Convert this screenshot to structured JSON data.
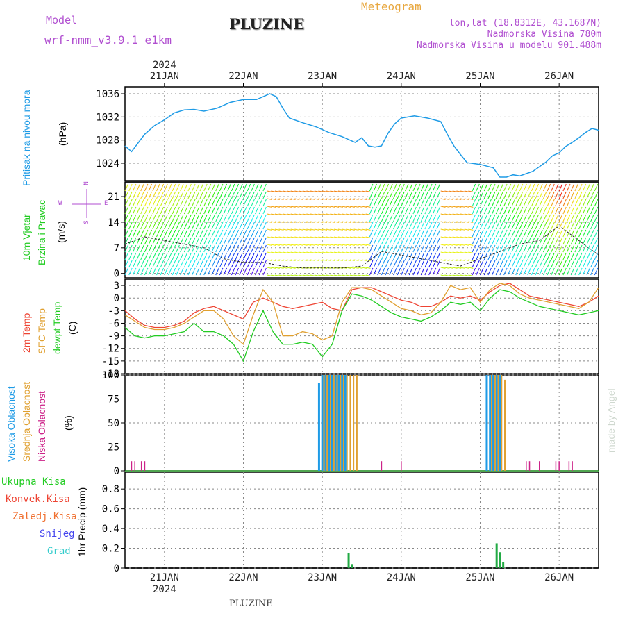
{
  "header": {
    "model_label": "Model",
    "model_name": "wrf-nmm_v3.9.1  e1km",
    "station": "PLUZINE",
    "meteogram_label": "Meteogram",
    "lonlat": "lon,lat (18.8312E, 43.1687N)",
    "altitude": "Nadmorska Visina 780m",
    "model_altitude": "Nadmorska Visina u modelu 901.488m",
    "footer_station": "PLUZINE",
    "watermark": "made by Angel"
  },
  "colors": {
    "pressure": "#1e9be6",
    "temp_2m": "#ee4433",
    "temp_sfc": "#e0a030",
    "dewpoint": "#22cc22",
    "cloud_high": "#1e9be6",
    "cloud_mid": "#e0a030",
    "cloud_low": "#cc2288",
    "precip_total": "#22aa44",
    "label_purple": "#b04ed0",
    "label_orange": "#e8a840"
  },
  "time_axis": {
    "year": "2024",
    "days": [
      "21JAN",
      "22JAN",
      "23JAN",
      "24JAN",
      "25JAN",
      "26JAN"
    ],
    "start_hour": -12,
    "end_hour": 132
  },
  "panels": {
    "pressure": {
      "ylabel_side": "Pritisak na nivou mora",
      "unit": "(hPa)",
      "ticks": [
        "1024",
        "1028",
        "1032",
        "1036"
      ]
    },
    "wind": {
      "ylabel_side_1": "10m Vjetar",
      "ylabel_side_2": "Brzina i Pravac",
      "unit": "(m/s)",
      "ticks": [
        "0",
        "7",
        "14",
        "21"
      ],
      "compass_n": "N",
      "compass_s": "S",
      "compass_w": "W",
      "compass_e": "E"
    },
    "temperature": {
      "label_2m": "2m Temp",
      "label_sfc": "SFC Temp",
      "label_dew": "dewpt Temp",
      "unit": "(C)",
      "ticks": [
        "3",
        "0",
        "-3",
        "-6",
        "-9",
        "-12",
        "-15",
        "-18"
      ]
    },
    "cloud": {
      "label_high": "Visoka Oblacnost",
      "label_mid": "Srednja Oblacnost",
      "label_low": "Niska Oblacnost",
      "unit": "(%)",
      "ticks": [
        "0",
        "25",
        "50",
        "75",
        "100"
      ]
    },
    "precip": {
      "legend": [
        "Ukupna Kisa",
        "Konvek.Kisa",
        "Zaledj.Kisa",
        "Snijeg",
        "Grad"
      ],
      "unit": "1hr Precip (mm)",
      "ticks": [
        "0",
        "0.2",
        "0.4",
        "0.6",
        "0.8"
      ]
    }
  },
  "chart_data": [
    {
      "type": "line",
      "name": "pressure",
      "ylabel": "Pritisak na nivou mora (hPa)",
      "ylim": [
        1021,
        1037.2
      ],
      "x": [
        -12,
        -10,
        -8,
        -6,
        -3,
        0,
        3,
        6,
        9,
        12,
        16,
        20,
        24,
        28,
        30,
        32,
        34,
        36,
        38,
        42,
        46,
        50,
        54,
        58,
        60,
        62,
        64,
        66,
        68,
        70,
        72,
        76,
        80,
        84,
        86,
        88,
        90,
        92,
        96,
        100,
        102,
        104,
        106,
        108,
        112,
        116,
        118,
        120,
        122,
        124,
        126,
        128,
        130,
        132
      ],
      "y": [
        1027,
        1026,
        1027.5,
        1029,
        1030.5,
        1031.5,
        1032.7,
        1033.2,
        1033.3,
        1033,
        1033.5,
        1034.5,
        1035,
        1035,
        1035.5,
        1036,
        1035.5,
        1033.5,
        1031.8,
        1031,
        1030.3,
        1029.3,
        1028.6,
        1027.6,
        1028.4,
        1027,
        1026.8,
        1027,
        1029.2,
        1030.8,
        1031.8,
        1032.2,
        1031.8,
        1031.2,
        1029,
        1027,
        1025.5,
        1024.1,
        1023.8,
        1023.2,
        1021.6,
        1021.6,
        1022,
        1021.8,
        1022.6,
        1024.2,
        1025.3,
        1025.8,
        1026.9,
        1027.6,
        1028.4,
        1029.3,
        1030,
        1029.7
      ]
    },
    {
      "type": "line",
      "name": "wind",
      "ylabel": "10m Vjetar Brzina i Pravac (m/s)",
      "ylim": [
        -1.2,
        25
      ],
      "x": [
        -12,
        -6,
        0,
        6,
        12,
        18,
        24,
        30,
        36,
        42,
        48,
        54,
        60,
        66,
        72,
        78,
        84,
        90,
        96,
        102,
        108,
        114,
        120,
        126,
        132
      ],
      "y": [
        8,
        10,
        9,
        8,
        7,
        4,
        3,
        3,
        2,
        1.5,
        1.5,
        1.5,
        2,
        6,
        5,
        4,
        3,
        2,
        4,
        6,
        8,
        9,
        13,
        9,
        5
      ]
    },
    {
      "type": "line",
      "ylabel": "(C)",
      "ylim": [
        -18,
        4.5
      ],
      "x": [
        -12,
        -9,
        -6,
        -3,
        0,
        3,
        6,
        9,
        12,
        15,
        18,
        21,
        24,
        27,
        30,
        33,
        36,
        39,
        42,
        45,
        48,
        51,
        54,
        57,
        60,
        63,
        66,
        69,
        72,
        75,
        78,
        81,
        84,
        87,
        90,
        93,
        96,
        99,
        102,
        105,
        108,
        111,
        114,
        117,
        120,
        123,
        126,
        129,
        132
      ],
      "series": [
        {
          "name": "2m Temp",
          "values": [
            -3,
            -5,
            -6.5,
            -7,
            -7,
            -6.5,
            -5.5,
            -3.5,
            -2.5,
            -2,
            -3,
            -4,
            -5,
            -1,
            0,
            -1,
            -2,
            -2.5,
            -2,
            -1.5,
            -1,
            -2.5,
            -3,
            2,
            2.5,
            2.5,
            1.5,
            0.5,
            -0.5,
            -1,
            -2,
            -2,
            -1,
            0.5,
            0,
            0.5,
            -0.5,
            1.5,
            3,
            3.5,
            2,
            0.5,
            0,
            -0.5,
            -1,
            -1.5,
            -2,
            -1,
            0.5
          ]
        },
        {
          "name": "SFC Temp",
          "values": [
            -4,
            -5.5,
            -7,
            -7.5,
            -7.5,
            -7,
            -6,
            -4.5,
            -3,
            -3,
            -5,
            -9,
            -11,
            -4,
            2,
            -1,
            -9,
            -9,
            -8,
            -8.5,
            -10,
            -9,
            -1,
            2.5,
            2.5,
            2,
            0.5,
            -1,
            -2.5,
            -3,
            -4,
            -3.5,
            -1,
            3,
            2,
            2.5,
            -1,
            2,
            3.5,
            3,
            1,
            0,
            -0.5,
            -1,
            -1.5,
            -2,
            -2.5,
            -1,
            2.5
          ]
        },
        {
          "name": "dewpt Temp",
          "values": [
            -7,
            -9,
            -9.5,
            -9,
            -9,
            -8.5,
            -8,
            -6,
            -8,
            -8,
            -9,
            -11,
            -15,
            -8,
            -3,
            -8,
            -11,
            -11,
            -10.5,
            -11,
            -14,
            -11,
            -3,
            1,
            0.5,
            -0.5,
            -2,
            -3.5,
            -4.5,
            -5,
            -5.5,
            -4.5,
            -3,
            -1,
            -1.5,
            -1,
            -3,
            0,
            2,
            1.5,
            0,
            -1,
            -2,
            -2.5,
            -3,
            -3.5,
            -4,
            -3.5,
            -3
          ]
        }
      ]
    },
    {
      "type": "bar",
      "ylabel": "(%)",
      "ylim": [
        0,
        100
      ],
      "series": [
        {
          "name": "Visoka Oblacnost",
          "x": [
            47,
            48,
            49,
            50,
            51,
            52,
            53,
            54,
            55,
            98,
            99,
            100,
            101,
            102
          ],
          "values": [
            92,
            100,
            100,
            100,
            100,
            100,
            100,
            100,
            100,
            100,
            100,
            100,
            100,
            100
          ]
        },
        {
          "name": "Srednja Oblacnost",
          "x": [
            48.5,
            49.5,
            50.5,
            51.5,
            52.5,
            53.5,
            54.5,
            55.5,
            56.5,
            57.5,
            58.5,
            99.5,
            100.5,
            101.5,
            102.5,
            103.5
          ],
          "values": [
            100,
            100,
            100,
            100,
            100,
            100,
            100,
            100,
            100,
            100,
            100,
            100,
            100,
            100,
            100,
            95
          ]
        },
        {
          "name": "Niska Oblacnost",
          "x": [
            -10,
            -9,
            -7,
            -6,
            66,
            72,
            110,
            111,
            114,
            119,
            120,
            123,
            124
          ],
          "values": [
            10,
            10,
            10,
            10,
            10,
            10,
            10,
            10,
            10,
            10,
            10,
            10,
            10
          ]
        }
      ]
    },
    {
      "type": "bar",
      "ylabel": "1hr Precip (mm)",
      "ylim": [
        0,
        0.97
      ],
      "series": [
        {
          "name": "Ukupna Kisa",
          "x": [
            56,
            57,
            101,
            102,
            103
          ],
          "values": [
            0.15,
            0.04,
            0.25,
            0.16,
            0.06
          ]
        }
      ]
    }
  ]
}
